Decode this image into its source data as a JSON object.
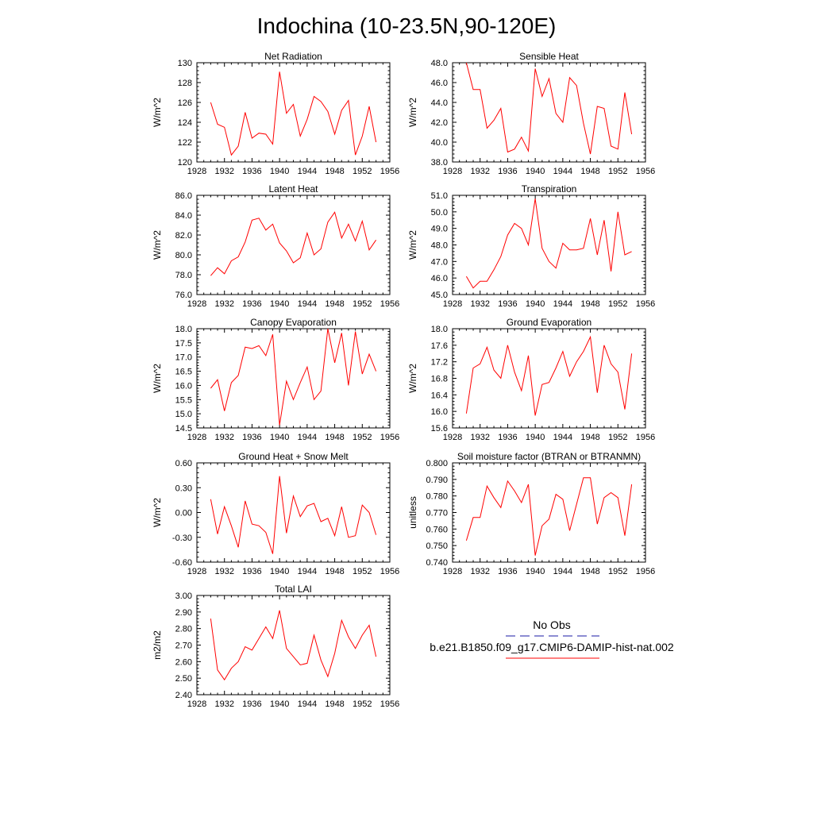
{
  "page_title": "Indochina (10-23.5N,90-120E)",
  "legend": {
    "obs_label": "No Obs",
    "model_label": "b.e21.B1850.f09_g17.CMIP6-DAMIP-hist-nat.002",
    "obs_color": "#1a1aa6",
    "model_color": "#ff0000"
  },
  "colors": {
    "series": "#ff0000",
    "axes": "#000000"
  },
  "chart_data": [
    {
      "type": "line",
      "title": "Net Radiation",
      "ylabel": "W/m^2",
      "xlim": [
        1928,
        1956
      ],
      "ylim": [
        120,
        130
      ],
      "xticks": [
        "1928",
        "1932",
        "1936",
        "1940",
        "1944",
        "1948",
        "1952",
        "1956"
      ],
      "yticks": [
        "120",
        "122",
        "124",
        "126",
        "128",
        "130"
      ],
      "x": [
        1930,
        1931,
        1932,
        1933,
        1934,
        1935,
        1936,
        1937,
        1938,
        1939,
        1940,
        1941,
        1942,
        1943,
        1944,
        1945,
        1946,
        1947,
        1948,
        1949,
        1950,
        1951,
        1952,
        1953,
        1954
      ],
      "series": [
        {
          "values": [
            126.0,
            123.8,
            123.5,
            120.7,
            121.6,
            125.0,
            122.4,
            122.9,
            122.8,
            121.8,
            129.1,
            124.9,
            125.8,
            122.6,
            124.3,
            126.6,
            126.1,
            125.1,
            122.8,
            125.2,
            126.2,
            120.7,
            122.6,
            125.6,
            122.0
          ]
        }
      ]
    },
    {
      "type": "line",
      "title": "Sensible Heat",
      "ylabel": "W/m^2",
      "xlim": [
        1928,
        1956
      ],
      "ylim": [
        38.0,
        48.0
      ],
      "xticks": [
        "1928",
        "1932",
        "1936",
        "1940",
        "1944",
        "1948",
        "1952",
        "1956"
      ],
      "yticks": [
        "38.0",
        "40.0",
        "42.0",
        "44.0",
        "46.0",
        "48.0"
      ],
      "x": [
        1930,
        1931,
        1932,
        1933,
        1934,
        1935,
        1936,
        1937,
        1938,
        1939,
        1940,
        1941,
        1942,
        1943,
        1944,
        1945,
        1946,
        1947,
        1948,
        1949,
        1950,
        1951,
        1952,
        1953,
        1954
      ],
      "series": [
        {
          "values": [
            48.0,
            45.3,
            45.3,
            41.4,
            42.2,
            43.4,
            39.0,
            39.3,
            40.5,
            39.1,
            47.4,
            44.6,
            46.4,
            42.9,
            42.0,
            46.5,
            45.7,
            41.9,
            38.8,
            43.6,
            43.4,
            39.6,
            39.3,
            45.0,
            40.8
          ]
        }
      ]
    },
    {
      "type": "line",
      "title": "Latent Heat",
      "ylabel": "W/m^2",
      "xlim": [
        1928,
        1956
      ],
      "ylim": [
        76.0,
        86.0
      ],
      "xticks": [
        "1928",
        "1932",
        "1936",
        "1940",
        "1944",
        "1948",
        "1952",
        "1956"
      ],
      "yticks": [
        "76.0",
        "78.0",
        "80.0",
        "82.0",
        "84.0",
        "86.0"
      ],
      "x": [
        1930,
        1931,
        1932,
        1933,
        1934,
        1935,
        1936,
        1937,
        1938,
        1939,
        1940,
        1941,
        1942,
        1943,
        1944,
        1945,
        1946,
        1947,
        1948,
        1949,
        1950,
        1951,
        1952,
        1953,
        1954
      ],
      "series": [
        {
          "values": [
            77.9,
            78.7,
            78.1,
            79.4,
            79.8,
            81.3,
            83.5,
            83.7,
            82.5,
            83.1,
            81.2,
            80.4,
            79.2,
            79.7,
            82.2,
            80.0,
            80.6,
            83.3,
            84.3,
            81.7,
            83.1,
            81.4,
            83.4,
            80.5,
            81.5
          ]
        }
      ]
    },
    {
      "type": "line",
      "title": "Transpiration",
      "ylabel": "W/m^2",
      "xlim": [
        1928,
        1956
      ],
      "ylim": [
        45.0,
        51.0
      ],
      "xticks": [
        "1928",
        "1932",
        "1936",
        "1940",
        "1944",
        "1948",
        "1952",
        "1956"
      ],
      "yticks": [
        "45.0",
        "46.0",
        "47.0",
        "48.0",
        "49.0",
        "50.0",
        "51.0"
      ],
      "x": [
        1930,
        1931,
        1932,
        1933,
        1934,
        1935,
        1936,
        1937,
        1938,
        1939,
        1940,
        1941,
        1942,
        1943,
        1944,
        1945,
        1946,
        1947,
        1948,
        1949,
        1950,
        1951,
        1952,
        1953,
        1954
      ],
      "series": [
        {
          "values": [
            46.1,
            45.4,
            45.8,
            45.8,
            46.5,
            47.3,
            48.6,
            49.3,
            49.0,
            48.0,
            50.8,
            47.8,
            47.0,
            46.6,
            48.1,
            47.7,
            47.7,
            47.8,
            49.6,
            47.4,
            49.5,
            46.4,
            50.0,
            47.4,
            47.6
          ]
        }
      ]
    },
    {
      "type": "line",
      "title": "Canopy Evaporation",
      "ylabel": "W/m^2",
      "xlim": [
        1928,
        1956
      ],
      "ylim": [
        14.5,
        18.0
      ],
      "xticks": [
        "1928",
        "1932",
        "1936",
        "1940",
        "1944",
        "1948",
        "1952",
        "1956"
      ],
      "yticks": [
        "14.5",
        "15.0",
        "15.5",
        "16.0",
        "16.5",
        "17.0",
        "17.5",
        "18.0"
      ],
      "x": [
        1930,
        1931,
        1932,
        1933,
        1934,
        1935,
        1936,
        1937,
        1938,
        1939,
        1940,
        1941,
        1942,
        1943,
        1944,
        1945,
        1946,
        1947,
        1948,
        1949,
        1950,
        1951,
        1952,
        1953,
        1954
      ],
      "series": [
        {
          "values": [
            15.9,
            16.2,
            15.1,
            16.1,
            16.35,
            17.35,
            17.3,
            17.4,
            17.05,
            17.8,
            14.6,
            16.15,
            15.5,
            16.1,
            16.65,
            15.5,
            15.8,
            18.0,
            16.8,
            17.85,
            16.0,
            17.9,
            16.4,
            17.1,
            16.5
          ]
        }
      ]
    },
    {
      "type": "line",
      "title": "Ground Evaporation",
      "ylabel": "W/m^2",
      "xlim": [
        1928,
        1956
      ],
      "ylim": [
        15.6,
        18.0
      ],
      "xticks": [
        "1928",
        "1932",
        "1936",
        "1940",
        "1944",
        "1948",
        "1952",
        "1956"
      ],
      "yticks": [
        "15.6",
        "16.0",
        "16.4",
        "16.8",
        "17.2",
        "17.6",
        "18.0"
      ],
      "x": [
        1930,
        1931,
        1932,
        1933,
        1934,
        1935,
        1936,
        1937,
        1938,
        1939,
        1940,
        1941,
        1942,
        1943,
        1944,
        1945,
        1946,
        1947,
        1948,
        1949,
        1950,
        1951,
        1952,
        1953,
        1954
      ],
      "series": [
        {
          "values": [
            15.95,
            17.05,
            17.15,
            17.55,
            17.0,
            16.8,
            17.6,
            16.95,
            16.5,
            17.35,
            15.9,
            16.65,
            16.7,
            17.05,
            17.45,
            16.85,
            17.2,
            17.45,
            17.8,
            16.45,
            17.6,
            17.15,
            16.95,
            16.05,
            17.4
          ]
        }
      ]
    },
    {
      "type": "line",
      "title": "Ground Heat + Snow Melt",
      "ylabel": "W/m^2",
      "xlim": [
        1928,
        1956
      ],
      "ylim": [
        -0.6,
        0.6
      ],
      "xticks": [
        "1928",
        "1932",
        "1936",
        "1940",
        "1944",
        "1948",
        "1952",
        "1956"
      ],
      "yticks": [
        "-0.60",
        "-0.30",
        "0.00",
        "0.30",
        "0.60"
      ],
      "x": [
        1930,
        1931,
        1932,
        1933,
        1934,
        1935,
        1936,
        1937,
        1938,
        1939,
        1940,
        1941,
        1942,
        1943,
        1944,
        1945,
        1946,
        1947,
        1948,
        1949,
        1950,
        1951,
        1952,
        1953,
        1954
      ],
      "series": [
        {
          "values": [
            0.16,
            -0.26,
            0.07,
            -0.16,
            -0.42,
            0.14,
            -0.14,
            -0.16,
            -0.24,
            -0.5,
            0.44,
            -0.25,
            0.2,
            -0.05,
            0.08,
            0.11,
            -0.11,
            -0.07,
            -0.28,
            0.07,
            -0.3,
            -0.28,
            0.09,
            0.0,
            -0.27
          ]
        }
      ]
    },
    {
      "type": "line",
      "title": "Soil moisture factor (BTRAN or BTRANMN)",
      "ylabel": "unitless",
      "xlim": [
        1928,
        1956
      ],
      "ylim": [
        0.74,
        0.8
      ],
      "xticks": [
        "1928",
        "1932",
        "1936",
        "1940",
        "1944",
        "1948",
        "1952",
        "1956"
      ],
      "yticks": [
        "0.740",
        "0.750",
        "0.760",
        "0.770",
        "0.780",
        "0.790",
        "0.800"
      ],
      "x": [
        1930,
        1931,
        1932,
        1933,
        1934,
        1935,
        1936,
        1937,
        1938,
        1939,
        1940,
        1941,
        1942,
        1943,
        1944,
        1945,
        1946,
        1947,
        1948,
        1949,
        1950,
        1951,
        1952,
        1953,
        1954
      ],
      "series": [
        {
          "values": [
            0.753,
            0.767,
            0.767,
            0.786,
            0.779,
            0.773,
            0.789,
            0.783,
            0.776,
            0.787,
            0.744,
            0.762,
            0.766,
            0.781,
            0.778,
            0.759,
            0.775,
            0.791,
            0.791,
            0.763,
            0.779,
            0.782,
            0.779,
            0.756,
            0.787
          ]
        }
      ]
    },
    {
      "type": "line",
      "title": "Total LAI",
      "ylabel": "m2/m2",
      "xlim": [
        1928,
        1956
      ],
      "ylim": [
        2.4,
        3.0
      ],
      "xticks": [
        "1928",
        "1932",
        "1936",
        "1940",
        "1944",
        "1948",
        "1952",
        "1956"
      ],
      "yticks": [
        "2.40",
        "2.50",
        "2.60",
        "2.70",
        "2.80",
        "2.90",
        "3.00"
      ],
      "x": [
        1930,
        1931,
        1932,
        1933,
        1934,
        1935,
        1936,
        1937,
        1938,
        1939,
        1940,
        1941,
        1942,
        1943,
        1944,
        1945,
        1946,
        1947,
        1948,
        1949,
        1950,
        1951,
        1952,
        1953,
        1954
      ],
      "series": [
        {
          "values": [
            2.86,
            2.55,
            2.49,
            2.56,
            2.6,
            2.69,
            2.67,
            2.74,
            2.81,
            2.74,
            2.91,
            2.68,
            2.63,
            2.58,
            2.59,
            2.76,
            2.61,
            2.51,
            2.65,
            2.85,
            2.75,
            2.68,
            2.76,
            2.82,
            2.63
          ]
        }
      ]
    }
  ]
}
